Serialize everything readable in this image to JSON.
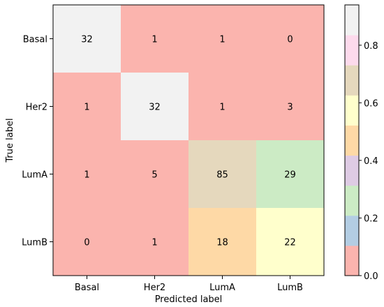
{
  "chart_data": {
    "type": "heatmap",
    "title": "",
    "xlabel": "Predicted label",
    "ylabel": "True label",
    "x_categories": [
      "Basal",
      "Her2",
      "LumA",
      "LumB"
    ],
    "y_categories": [
      "Basal",
      "Her2",
      "LumA",
      "LumB"
    ],
    "values": [
      [
        32,
        1,
        1,
        0
      ],
      [
        1,
        32,
        1,
        3
      ],
      [
        1,
        5,
        85,
        29
      ],
      [
        0,
        1,
        18,
        22
      ]
    ],
    "normalized_values": [
      [
        0.94,
        0.03,
        0.03,
        0.0
      ],
      [
        0.03,
        0.86,
        0.03,
        0.08
      ],
      [
        0.01,
        0.04,
        0.71,
        0.24
      ],
      [
        0.0,
        0.02,
        0.44,
        0.54
      ]
    ],
    "colormap": "Pastel1",
    "colorbar": {
      "range": [
        0.0,
        0.94
      ],
      "ticks": [
        0.0,
        0.2,
        0.4,
        0.6,
        0.8
      ],
      "tick_labels": [
        "0.0",
        "0.2",
        "0.4",
        "0.6",
        "0.8"
      ],
      "colors": [
        "#fbb4ae",
        "#b3cde3",
        "#ccebc5",
        "#decbe4",
        "#fed9a6",
        "#ffffcc",
        "#e5d8bd",
        "#fddaec",
        "#f2f2f2"
      ]
    }
  }
}
